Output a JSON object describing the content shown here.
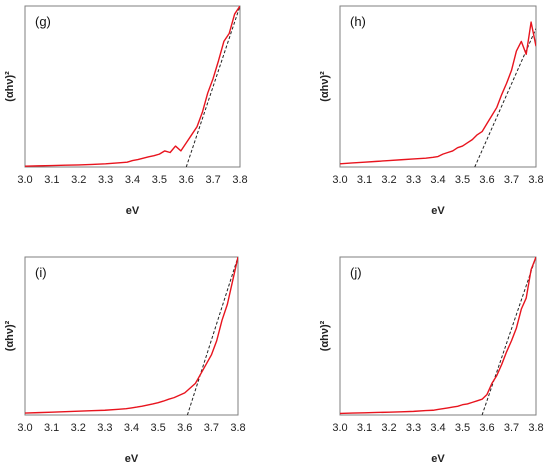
{
  "chart_data": [
    {
      "type": "line",
      "panel_label": "(g)",
      "xlabel": "eV",
      "ylabel": "(αhν)²",
      "xlim": [
        3.0,
        3.8
      ],
      "x_ticks": [
        "3.0",
        "3.1",
        "3.2",
        "3.3",
        "3.4",
        "3.5",
        "3.6",
        "3.7",
        "3.8"
      ],
      "ylim": [
        0,
        1
      ],
      "y_ticks_shown": false,
      "series": [
        {
          "x": [
            3.0,
            3.05,
            3.1,
            3.15,
            3.2,
            3.25,
            3.3,
            3.35,
            3.38,
            3.4,
            3.42,
            3.44,
            3.46,
            3.48,
            3.5,
            3.52,
            3.54,
            3.56,
            3.58,
            3.6,
            3.62,
            3.64,
            3.66,
            3.68,
            3.7,
            3.72,
            3.74,
            3.76,
            3.78,
            3.8
          ],
          "y": [
            0.005,
            0.007,
            0.009,
            0.011,
            0.013,
            0.016,
            0.02,
            0.026,
            0.03,
            0.04,
            0.046,
            0.055,
            0.063,
            0.07,
            0.08,
            0.1,
            0.09,
            0.13,
            0.1,
            0.15,
            0.2,
            0.25,
            0.34,
            0.46,
            0.55,
            0.66,
            0.78,
            0.83,
            0.95,
            1.0
          ]
        }
      ],
      "tangent": [
        [
          3.6,
          0.0
        ],
        [
          3.8,
          1.0
        ]
      ]
    },
    {
      "type": "line",
      "panel_label": "(h)",
      "xlabel": "eV",
      "ylabel": "(αhν)²",
      "xlim": [
        3.0,
        3.8
      ],
      "x_ticks": [
        "3.0",
        "3.1",
        "3.2",
        "3.3",
        "3.4",
        "3.5",
        "3.6",
        "3.7",
        "3.8"
      ],
      "ylim": [
        0,
        1
      ],
      "y_ticks_shown": false,
      "series": [
        {
          "x": [
            3.0,
            3.05,
            3.1,
            3.15,
            3.2,
            3.25,
            3.3,
            3.35,
            3.38,
            3.4,
            3.42,
            3.44,
            3.46,
            3.48,
            3.5,
            3.52,
            3.54,
            3.56,
            3.58,
            3.6,
            3.62,
            3.64,
            3.66,
            3.68,
            3.7,
            3.72,
            3.74,
            3.76,
            3.78,
            3.8
          ],
          "y": [
            0.02,
            0.025,
            0.03,
            0.035,
            0.04,
            0.045,
            0.05,
            0.055,
            0.06,
            0.065,
            0.08,
            0.09,
            0.1,
            0.12,
            0.13,
            0.15,
            0.17,
            0.2,
            0.22,
            0.27,
            0.32,
            0.37,
            0.45,
            0.52,
            0.6,
            0.72,
            0.78,
            0.7,
            0.9,
            0.75
          ]
        }
      ],
      "tangent": [
        [
          3.55,
          0.0
        ],
        [
          3.8,
          0.86
        ]
      ]
    },
    {
      "type": "line",
      "panel_label": "(i)",
      "xlabel": "eV",
      "ylabel": "(αhν)²",
      "xlim": [
        3.0,
        3.8
      ],
      "x_ticks": [
        "3.0",
        "3.1",
        "3.2",
        "3.3",
        "3.4",
        "3.5",
        "3.6",
        "3.7",
        "3.8"
      ],
      "ylim": [
        0,
        1
      ],
      "y_ticks_shown": false,
      "series": [
        {
          "x": [
            3.0,
            3.05,
            3.1,
            3.15,
            3.2,
            3.25,
            3.3,
            3.35,
            3.38,
            3.4,
            3.42,
            3.44,
            3.46,
            3.48,
            3.5,
            3.52,
            3.54,
            3.56,
            3.58,
            3.6,
            3.62,
            3.64,
            3.66,
            3.68,
            3.7,
            3.72,
            3.74,
            3.76,
            3.78,
            3.8
          ],
          "y": [
            0.012,
            0.015,
            0.018,
            0.021,
            0.024,
            0.027,
            0.03,
            0.036,
            0.04,
            0.045,
            0.05,
            0.056,
            0.063,
            0.07,
            0.078,
            0.088,
            0.1,
            0.11,
            0.125,
            0.14,
            0.17,
            0.2,
            0.26,
            0.32,
            0.38,
            0.47,
            0.6,
            0.7,
            0.85,
            1.0
          ]
        }
      ],
      "tangent": [
        [
          3.61,
          0.0
        ],
        [
          3.8,
          1.0
        ]
      ]
    },
    {
      "type": "line",
      "panel_label": "(j)",
      "xlabel": "eV",
      "ylabel": "(αhν)²",
      "xlim": [
        3.0,
        3.8
      ],
      "x_ticks": [
        "3.0",
        "3.1",
        "3.2",
        "3.3",
        "3.4",
        "3.5",
        "3.6",
        "3.7",
        "3.8"
      ],
      "ylim": [
        0,
        1
      ],
      "y_ticks_shown": false,
      "series": [
        {
          "x": [
            3.0,
            3.05,
            3.1,
            3.15,
            3.2,
            3.25,
            3.3,
            3.35,
            3.38,
            3.4,
            3.42,
            3.44,
            3.46,
            3.48,
            3.5,
            3.52,
            3.54,
            3.56,
            3.58,
            3.6,
            3.62,
            3.64,
            3.66,
            3.68,
            3.7,
            3.72,
            3.74,
            3.76,
            3.78,
            3.8
          ],
          "y": [
            0.01,
            0.012,
            0.014,
            0.016,
            0.018,
            0.02,
            0.023,
            0.028,
            0.03,
            0.035,
            0.04,
            0.045,
            0.05,
            0.055,
            0.065,
            0.07,
            0.08,
            0.09,
            0.1,
            0.13,
            0.2,
            0.25,
            0.32,
            0.4,
            0.47,
            0.55,
            0.67,
            0.74,
            0.92,
            1.0
          ]
        }
      ],
      "tangent": [
        [
          3.58,
          0.0
        ],
        [
          3.8,
          1.0
        ]
      ]
    }
  ],
  "colors": {
    "curve": "#e8141e",
    "tangent": "#222222",
    "axis": "#7f7f7f"
  }
}
